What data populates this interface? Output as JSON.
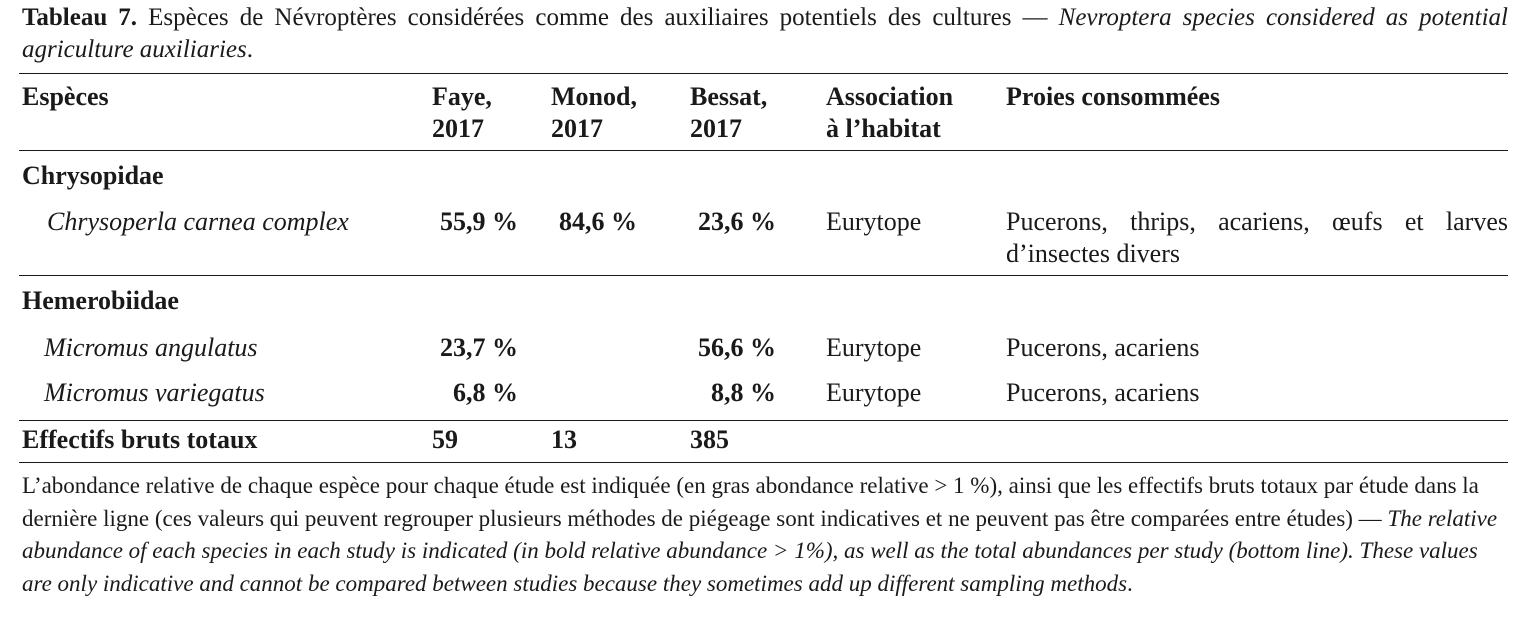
{
  "caption": {
    "label": "Tableau 7.",
    "fr": " Espèces de Névroptères considérées comme des auxiliaires potentiels des cultures — ",
    "en": "Nevroptera species considered as potential agriculture auxiliaries",
    "end": "."
  },
  "headers": {
    "species": "Espèces",
    "faye_1": "Faye,",
    "faye_2": "2017",
    "monod_1": "Monod,",
    "monod_2": "2017",
    "bessat_1": "Bessat,",
    "bessat_2": "2017",
    "assoc_1": "Association",
    "assoc_2": "à l’habitat",
    "prey": "Proies consommées"
  },
  "families": {
    "chrysopidae": {
      "name": "Chrysopidae",
      "species": {
        "name": "Chrysoperla carnea complex",
        "faye": "55,9 %",
        "monod": "84,6 %",
        "bessat": "23,6 %",
        "habitat": "Eurytope",
        "prey": "Pucerons, thrips, acariens, œufs et larves d’insectes divers"
      }
    },
    "hemerobiidae": {
      "name": "Hemerobiidae",
      "species": [
        {
          "name": "Micromus angulatus",
          "faye": "23,7 %",
          "monod": "",
          "bessat": "56,6 %",
          "habitat": "Eurytope",
          "prey": "Pucerons, acariens"
        },
        {
          "name": "Micromus variegatus",
          "faye": "6,8 %",
          "monod": "",
          "bessat": "8,8 %",
          "habitat": "Eurytope",
          "prey": "Pucerons, acariens"
        }
      ]
    }
  },
  "totals": {
    "label": "Effectifs bruts totaux",
    "faye": "59",
    "monod": "13",
    "bessat": "385"
  },
  "note": {
    "fr": "L’abondance relative de chaque espèce pour chaque étude est indiquée (en gras abondance relative > 1 %), ainsi que les effectifs bruts totaux par étude dans la dernière ligne (ces valeurs qui peuvent regrouper plusieurs méthodes de piégeage sont indicatives et ne peuvent pas être comparées entre études) — ",
    "en": "The relative abundance of each species in each study is indicated (in bold relative abundance > 1%), as well as the total abundances per study (bottom line). These values are only indicative and cannot be compared between studies because they sometimes add up different sampling methods",
    "end": "."
  }
}
